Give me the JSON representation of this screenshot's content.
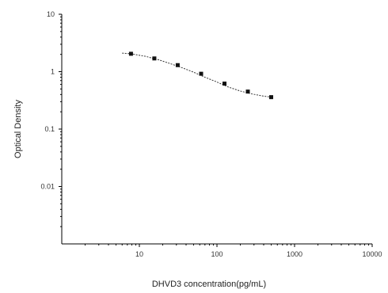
{
  "chart_data": {
    "type": "scatter",
    "xlabel": "DHVD3 concentration(pg/mL)",
    "ylabel": "Optical Density",
    "x_scale": "log",
    "y_scale": "log",
    "xlim": [
      1,
      10000
    ],
    "ylim": [
      0.001,
      10
    ],
    "x_ticks": [
      {
        "value": 10,
        "label": "10"
      },
      {
        "value": 100,
        "label": "100"
      },
      {
        "value": 1000,
        "label": "1000"
      },
      {
        "value": 10000,
        "label": "10000"
      }
    ],
    "y_ticks": [
      {
        "value": 10,
        "label": "10"
      },
      {
        "value": 1,
        "label": "1"
      },
      {
        "value": 0.1,
        "label": "0.1"
      },
      {
        "value": 0.01,
        "label": "0.01"
      }
    ],
    "grid": false,
    "series": [
      {
        "x": [
          7.8,
          15.6,
          31.2,
          62.5,
          125,
          250,
          500
        ],
        "y": [
          2.05,
          1.7,
          1.3,
          0.92,
          0.62,
          0.45,
          0.36
        ]
      }
    ],
    "fit_curve": {
      "x": [
        6,
        7.8,
        12,
        18,
        25,
        35,
        50,
        70,
        100,
        140,
        200,
        280,
        400,
        500
      ],
      "y": [
        2.1,
        2.05,
        1.85,
        1.6,
        1.38,
        1.18,
        0.98,
        0.8,
        0.66,
        0.54,
        0.46,
        0.41,
        0.375,
        0.36
      ]
    },
    "colors": {
      "points": "#111111",
      "line": "#333333"
    }
  }
}
